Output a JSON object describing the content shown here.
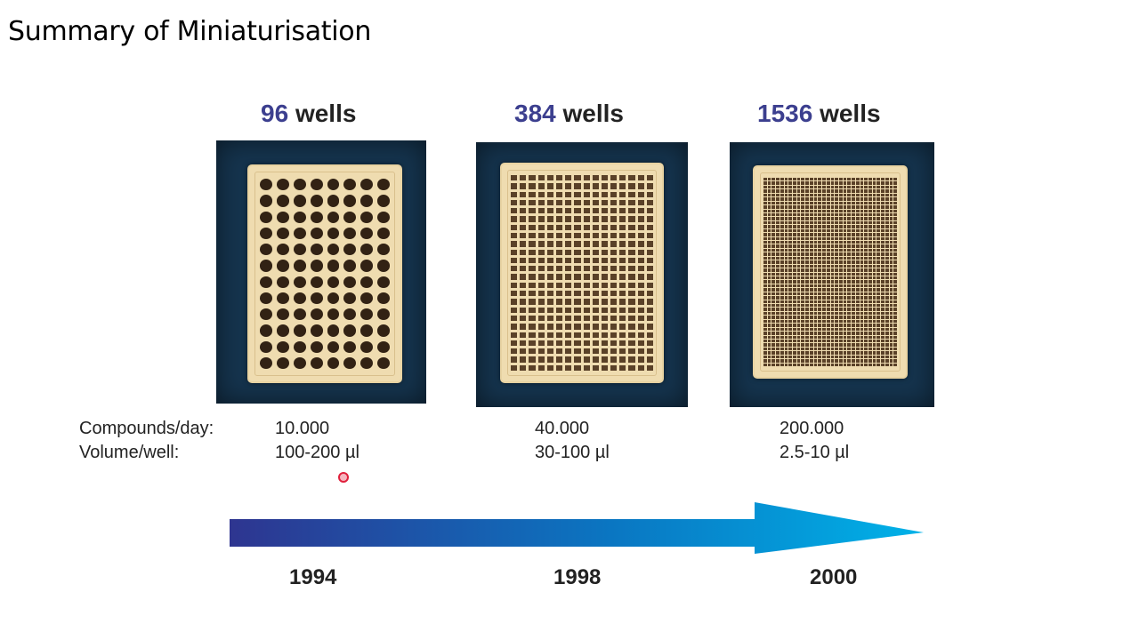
{
  "title": "Summary of Miniaturisation",
  "row_labels": {
    "compounds": "Compounds/day:",
    "volume": "Volume/well:"
  },
  "plates": [
    {
      "count": "96",
      "unit": "wells",
      "compounds": "10.000",
      "volume": "100-200 µl",
      "year": "1994"
    },
    {
      "count": "384",
      "unit": "wells",
      "compounds": "40.000",
      "volume": "30-100 µl",
      "year": "1998"
    },
    {
      "count": "1536",
      "unit": "wells",
      "compounds": "200.000",
      "volume": "2.5-10 µl",
      "year": "2000"
    }
  ],
  "colors": {
    "arrow_start": "#2e3590",
    "arrow_end": "#00b2e8",
    "number_highlight": "#3c3f8f"
  }
}
